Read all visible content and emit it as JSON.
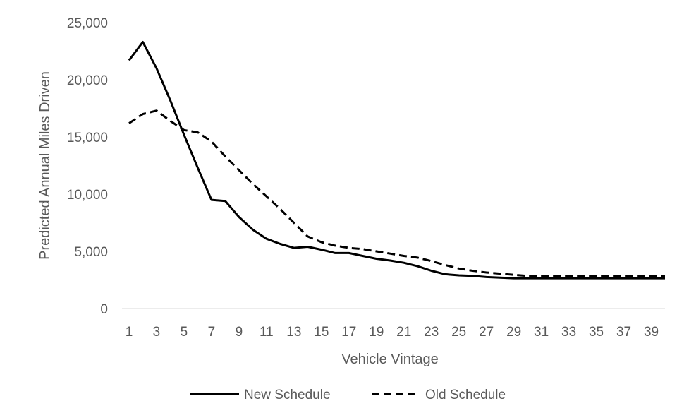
{
  "chart_data": {
    "type": "line",
    "title": "",
    "xlabel": "Vehicle Vintage",
    "ylabel": "Predicted Annual Miles Driven",
    "x": [
      1,
      2,
      3,
      4,
      5,
      6,
      7,
      8,
      9,
      10,
      11,
      12,
      13,
      14,
      15,
      16,
      17,
      18,
      19,
      20,
      21,
      22,
      23,
      24,
      25,
      26,
      27,
      28,
      29,
      30,
      31,
      32,
      33,
      34,
      35,
      36,
      37,
      38,
      39,
      40
    ],
    "x_tick_labels": [
      "1",
      "3",
      "5",
      "7",
      "9",
      "11",
      "13",
      "15",
      "17",
      "19",
      "21",
      "23",
      "25",
      "27",
      "29",
      "31",
      "33",
      "35",
      "37",
      "39"
    ],
    "y_tick_labels": [
      "0",
      "5,000",
      "10,000",
      "15,000",
      "20,000",
      "25,000"
    ],
    "ylim": [
      0,
      25000
    ],
    "grid": false,
    "legend_position": "bottom",
    "series": [
      {
        "name": "New Schedule",
        "line_style": "solid",
        "color": "#000000",
        "values": [
          21700,
          23300,
          21000,
          18200,
          15200,
          12300,
          9500,
          9400,
          8000,
          6900,
          6100,
          5650,
          5300,
          5400,
          5150,
          4850,
          4850,
          4600,
          4350,
          4200,
          4000,
          3700,
          3300,
          3000,
          2900,
          2850,
          2750,
          2700,
          2650,
          2650,
          2650,
          2650,
          2650,
          2650,
          2650,
          2650,
          2650,
          2650,
          2650,
          2650
        ]
      },
      {
        "name": "Old Schedule",
        "line_style": "dashed",
        "color": "#000000",
        "values": [
          16200,
          17000,
          17300,
          16400,
          15600,
          15400,
          14600,
          13300,
          12100,
          10900,
          9800,
          8700,
          7500,
          6300,
          5800,
          5500,
          5300,
          5200,
          5000,
          4800,
          4600,
          4450,
          4150,
          3800,
          3500,
          3300,
          3150,
          3050,
          2950,
          2850,
          2850,
          2850,
          2850,
          2850,
          2850,
          2850,
          2850,
          2850,
          2850,
          2850
        ]
      }
    ]
  }
}
